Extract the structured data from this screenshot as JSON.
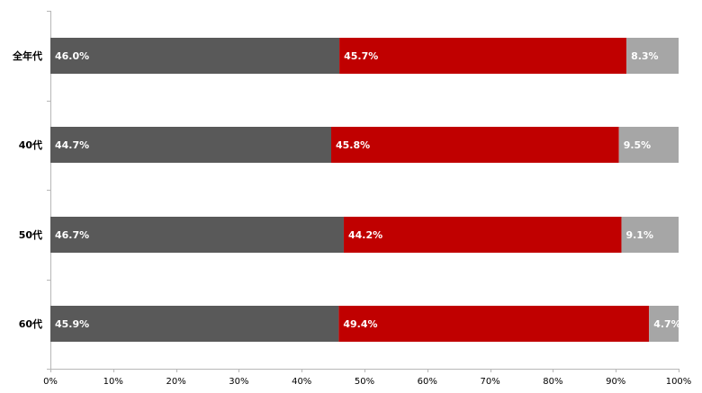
{
  "chart_data": {
    "type": "bar",
    "orientation": "horizontal",
    "stacked": "percent",
    "categories": [
      "全年代",
      "40代",
      "50代",
      "60代"
    ],
    "series": [
      {
        "values": [
          46.0,
          44.7,
          46.7,
          45.9
        ],
        "labels": [
          "46.0%",
          "44.7%",
          "46.7%",
          "45.9%"
        ],
        "color": "#595959"
      },
      {
        "values": [
          45.7,
          45.8,
          44.2,
          49.4
        ],
        "labels": [
          "45.7%",
          "45.8%",
          "44.2%",
          "49.4%"
        ],
        "color": "#c00000"
      },
      {
        "values": [
          8.3,
          9.5,
          9.1,
          4.7
        ],
        "labels": [
          "8.3%",
          "9.5%",
          "9.1%",
          "4.7%"
        ],
        "color": "#a6a6a6"
      }
    ],
    "xlim": [
      0,
      100
    ],
    "xticks": [
      "0%",
      "10%",
      "20%",
      "30%",
      "40%",
      "50%",
      "60%",
      "70%",
      "80%",
      "90%",
      "100%"
    ],
    "title": "",
    "xlabel": "",
    "ylabel": "",
    "grid": false,
    "legend": "none"
  }
}
